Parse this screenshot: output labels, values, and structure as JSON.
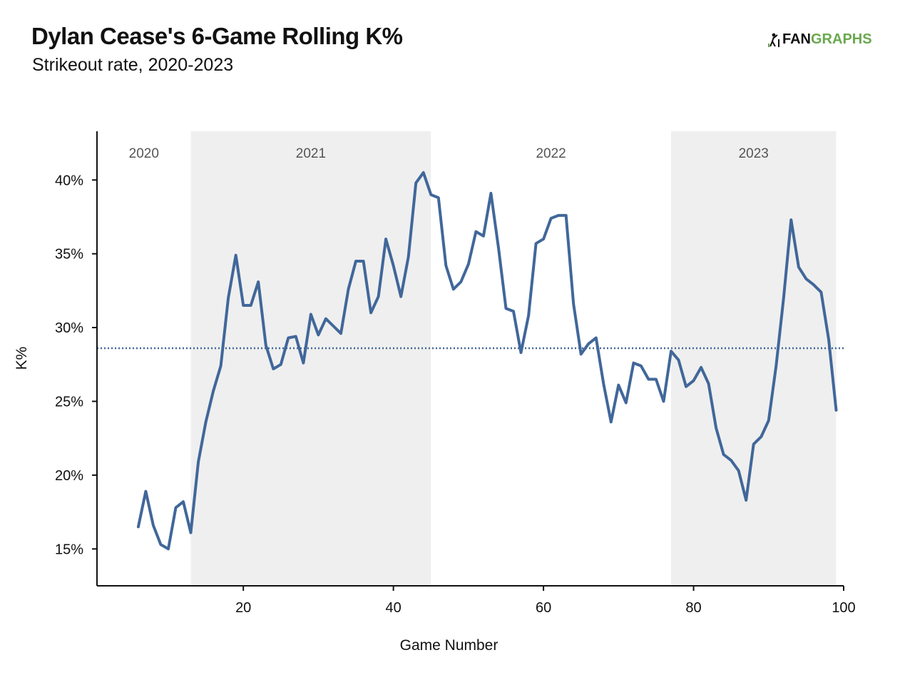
{
  "header": {
    "title": "Dylan Cease's 6-Game Rolling K%",
    "subtitle": "Strikeout rate, 2020-2023"
  },
  "brand": {
    "fan": "FAN",
    "graphs": "GRAPHS",
    "colors": {
      "fan": "#111111",
      "graphs": "#6aa84f"
    }
  },
  "chart_data": {
    "type": "line",
    "title": "Dylan Cease's 6-Game Rolling K%",
    "subtitle": "Strikeout rate, 2020-2023",
    "xlabel": "Game Number",
    "ylabel": "K%",
    "xlim": [
      0.5,
      100
    ],
    "ylim": [
      12.5,
      43.3
    ],
    "xticks": [
      20,
      40,
      60,
      80,
      100
    ],
    "yticks": [
      15,
      20,
      25,
      30,
      35,
      40
    ],
    "ytick_labels": [
      "15%",
      "20%",
      "25%",
      "30%",
      "35%",
      "40%"
    ],
    "grid": false,
    "line_color": "#41679a",
    "reference_line": {
      "y": 28.6,
      "style": "dotted",
      "color": "#41679a"
    },
    "season_bands": [
      {
        "label": "2020",
        "x0": 0.5,
        "x1": 13,
        "shaded": false
      },
      {
        "label": "2021",
        "x0": 13,
        "x1": 45,
        "shaded": true
      },
      {
        "label": "2022",
        "x0": 45,
        "x1": 77,
        "shaded": false
      },
      {
        "label": "2023",
        "x0": 77,
        "x1": 99,
        "shaded": true
      }
    ],
    "band_color": "#efefef",
    "series": [
      {
        "x": [
          6,
          7,
          8,
          9,
          10,
          11,
          12,
          13,
          14,
          15,
          16,
          17,
          18,
          19,
          20,
          21,
          22,
          23,
          24,
          25,
          26,
          27,
          28,
          29,
          30,
          31,
          32,
          33,
          34,
          35,
          36,
          37,
          38,
          39,
          40,
          41,
          42,
          43,
          44,
          45,
          46,
          47,
          48,
          49,
          50,
          51,
          52,
          53,
          54,
          55,
          56,
          57,
          58,
          59,
          60,
          61,
          62,
          63,
          64,
          65,
          66,
          67,
          68,
          69,
          70,
          71,
          72,
          73,
          74,
          75,
          76,
          77,
          78,
          79,
          80,
          81,
          82,
          83,
          84,
          85,
          86,
          87,
          88,
          89,
          90,
          91,
          92,
          93,
          94,
          95,
          96,
          97,
          98,
          99
        ],
        "values": [
          16.5,
          18.9,
          16.6,
          15.3,
          15.0,
          17.8,
          18.2,
          16.1,
          20.9,
          23.6,
          25.7,
          27.4,
          32.0,
          34.9,
          31.5,
          31.5,
          33.1,
          28.8,
          27.2,
          27.5,
          29.3,
          29.4,
          27.6,
          30.9,
          29.5,
          30.6,
          30.1,
          29.6,
          32.6,
          34.5,
          34.5,
          31.0,
          32.1,
          36.0,
          34.2,
          32.1,
          34.8,
          39.8,
          40.5,
          39.0,
          38.8,
          34.2,
          32.6,
          33.1,
          34.3,
          36.5,
          36.2,
          39.1,
          35.4,
          31.3,
          31.1,
          28.3,
          30.8,
          35.7,
          36.0,
          37.4,
          37.6,
          37.6,
          31.6,
          28.2,
          28.9,
          29.3,
          26.2,
          23.6,
          26.1,
          24.9,
          27.6,
          27.4,
          26.5,
          26.5,
          25.0,
          28.4,
          27.8,
          26.0,
          26.4,
          27.3,
          26.2,
          23.2,
          21.4,
          21.0,
          20.3,
          18.3,
          22.1,
          22.6,
          23.7,
          27.4,
          32.0,
          37.3,
          34.1,
          33.3,
          32.9,
          32.4,
          29.2,
          24.4
        ]
      }
    ]
  }
}
